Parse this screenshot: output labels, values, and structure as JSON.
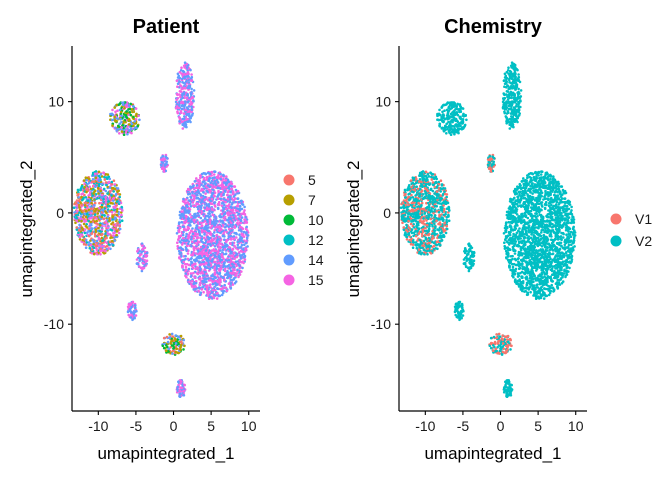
{
  "chart_data": [
    {
      "type": "scatter",
      "title": "Patient",
      "xlabel": "umapintegrated_1",
      "ylabel": "umapintegrated_2",
      "xlim": [
        -13.5,
        11.5
      ],
      "ylim": [
        -17.8,
        15.0
      ],
      "xticks": [
        -10,
        -5,
        0,
        5,
        10
      ],
      "xtick_labels": [
        "-10",
        "-5",
        "0",
        "5",
        "10"
      ],
      "yticks": [
        -10,
        0,
        10
      ],
      "ytick_labels": [
        "-10",
        "0",
        "10"
      ],
      "legend_position": "right",
      "legend": [
        {
          "label": "5",
          "color": "#F8766D"
        },
        {
          "label": "7",
          "color": "#B79F00"
        },
        {
          "label": "10",
          "color": "#00BA38"
        },
        {
          "label": "12",
          "color": "#00BFC4"
        },
        {
          "label": "14",
          "color": "#619CFF"
        },
        {
          "label": "15",
          "color": "#F564E3"
        }
      ],
      "clusters": [
        {
          "center": [
            5.2,
            -2.0
          ],
          "size": [
            9.5,
            11.5
          ],
          "colors": [
            "#F564E3",
            "#619CFF"
          ]
        },
        {
          "center": [
            -10.0,
            0.0
          ],
          "size": [
            6.5,
            7.5
          ],
          "colors": [
            "#F564E3",
            "#619CFF",
            "#00BFC4",
            "#B79F00",
            "#F8766D"
          ]
        },
        {
          "center": [
            1.5,
            10.5
          ],
          "size": [
            2.5,
            6.0
          ],
          "colors": [
            "#F564E3",
            "#619CFF"
          ]
        },
        {
          "center": [
            -6.5,
            8.5
          ],
          "size": [
            4.0,
            3.0
          ],
          "colors": [
            "#F564E3",
            "#619CFF",
            "#00BA38",
            "#B79F00"
          ]
        },
        {
          "center": [
            -4.2,
            -4.0
          ],
          "size": [
            1.5,
            2.5
          ],
          "colors": [
            "#619CFF",
            "#F564E3"
          ]
        },
        {
          "center": [
            -5.5,
            -8.8
          ],
          "size": [
            1.2,
            1.8
          ],
          "colors": [
            "#F564E3",
            "#619CFF"
          ]
        },
        {
          "center": [
            -1.2,
            4.5
          ],
          "size": [
            1.0,
            1.6
          ],
          "colors": [
            "#619CFF",
            "#F564E3"
          ]
        },
        {
          "center": [
            0.0,
            -11.8
          ],
          "size": [
            3.0,
            2.0
          ],
          "colors": [
            "#F8766D",
            "#00BA38",
            "#619CFF",
            "#B79F00"
          ]
        },
        {
          "center": [
            1.0,
            -15.8
          ],
          "size": [
            1.2,
            1.6
          ],
          "colors": [
            "#F564E3",
            "#619CFF"
          ]
        }
      ]
    },
    {
      "type": "scatter",
      "title": "Chemistry",
      "xlabel": "umapintegrated_1",
      "ylabel": "umapintegrated_2",
      "xlim": [
        -13.5,
        11.5
      ],
      "ylim": [
        -17.8,
        15.0
      ],
      "xticks": [
        -10,
        -5,
        0,
        5,
        10
      ],
      "xtick_labels": [
        "-10",
        "-5",
        "0",
        "5",
        "10"
      ],
      "yticks": [
        -10,
        0,
        10
      ],
      "ytick_labels": [
        "-10",
        "0",
        "10"
      ],
      "legend_position": "right",
      "legend": [
        {
          "label": "V1",
          "color": "#F8766D"
        },
        {
          "label": "V2",
          "color": "#00BFC4"
        }
      ],
      "clusters": [
        {
          "center": [
            5.2,
            -2.0
          ],
          "size": [
            9.5,
            11.5
          ],
          "colors": [
            "#00BFC4"
          ]
        },
        {
          "center": [
            -10.0,
            0.0
          ],
          "size": [
            6.5,
            7.5
          ],
          "colors": [
            "#00BFC4",
            "#00BFC4",
            "#F8766D"
          ]
        },
        {
          "center": [
            1.5,
            10.5
          ],
          "size": [
            2.5,
            6.0
          ],
          "colors": [
            "#00BFC4"
          ]
        },
        {
          "center": [
            -6.5,
            8.5
          ],
          "size": [
            4.0,
            3.0
          ],
          "colors": [
            "#00BFC4"
          ]
        },
        {
          "center": [
            -4.2,
            -4.0
          ],
          "size": [
            1.5,
            2.5
          ],
          "colors": [
            "#00BFC4"
          ]
        },
        {
          "center": [
            -5.5,
            -8.8
          ],
          "size": [
            1.2,
            1.8
          ],
          "colors": [
            "#00BFC4"
          ]
        },
        {
          "center": [
            -1.2,
            4.5
          ],
          "size": [
            1.0,
            1.6
          ],
          "colors": [
            "#00BFC4",
            "#F8766D"
          ]
        },
        {
          "center": [
            0.0,
            -11.8
          ],
          "size": [
            3.0,
            2.0
          ],
          "colors": [
            "#00BFC4",
            "#F8766D"
          ]
        },
        {
          "center": [
            1.0,
            -15.8
          ],
          "size": [
            1.2,
            1.6
          ],
          "colors": [
            "#00BFC4"
          ]
        }
      ]
    }
  ]
}
